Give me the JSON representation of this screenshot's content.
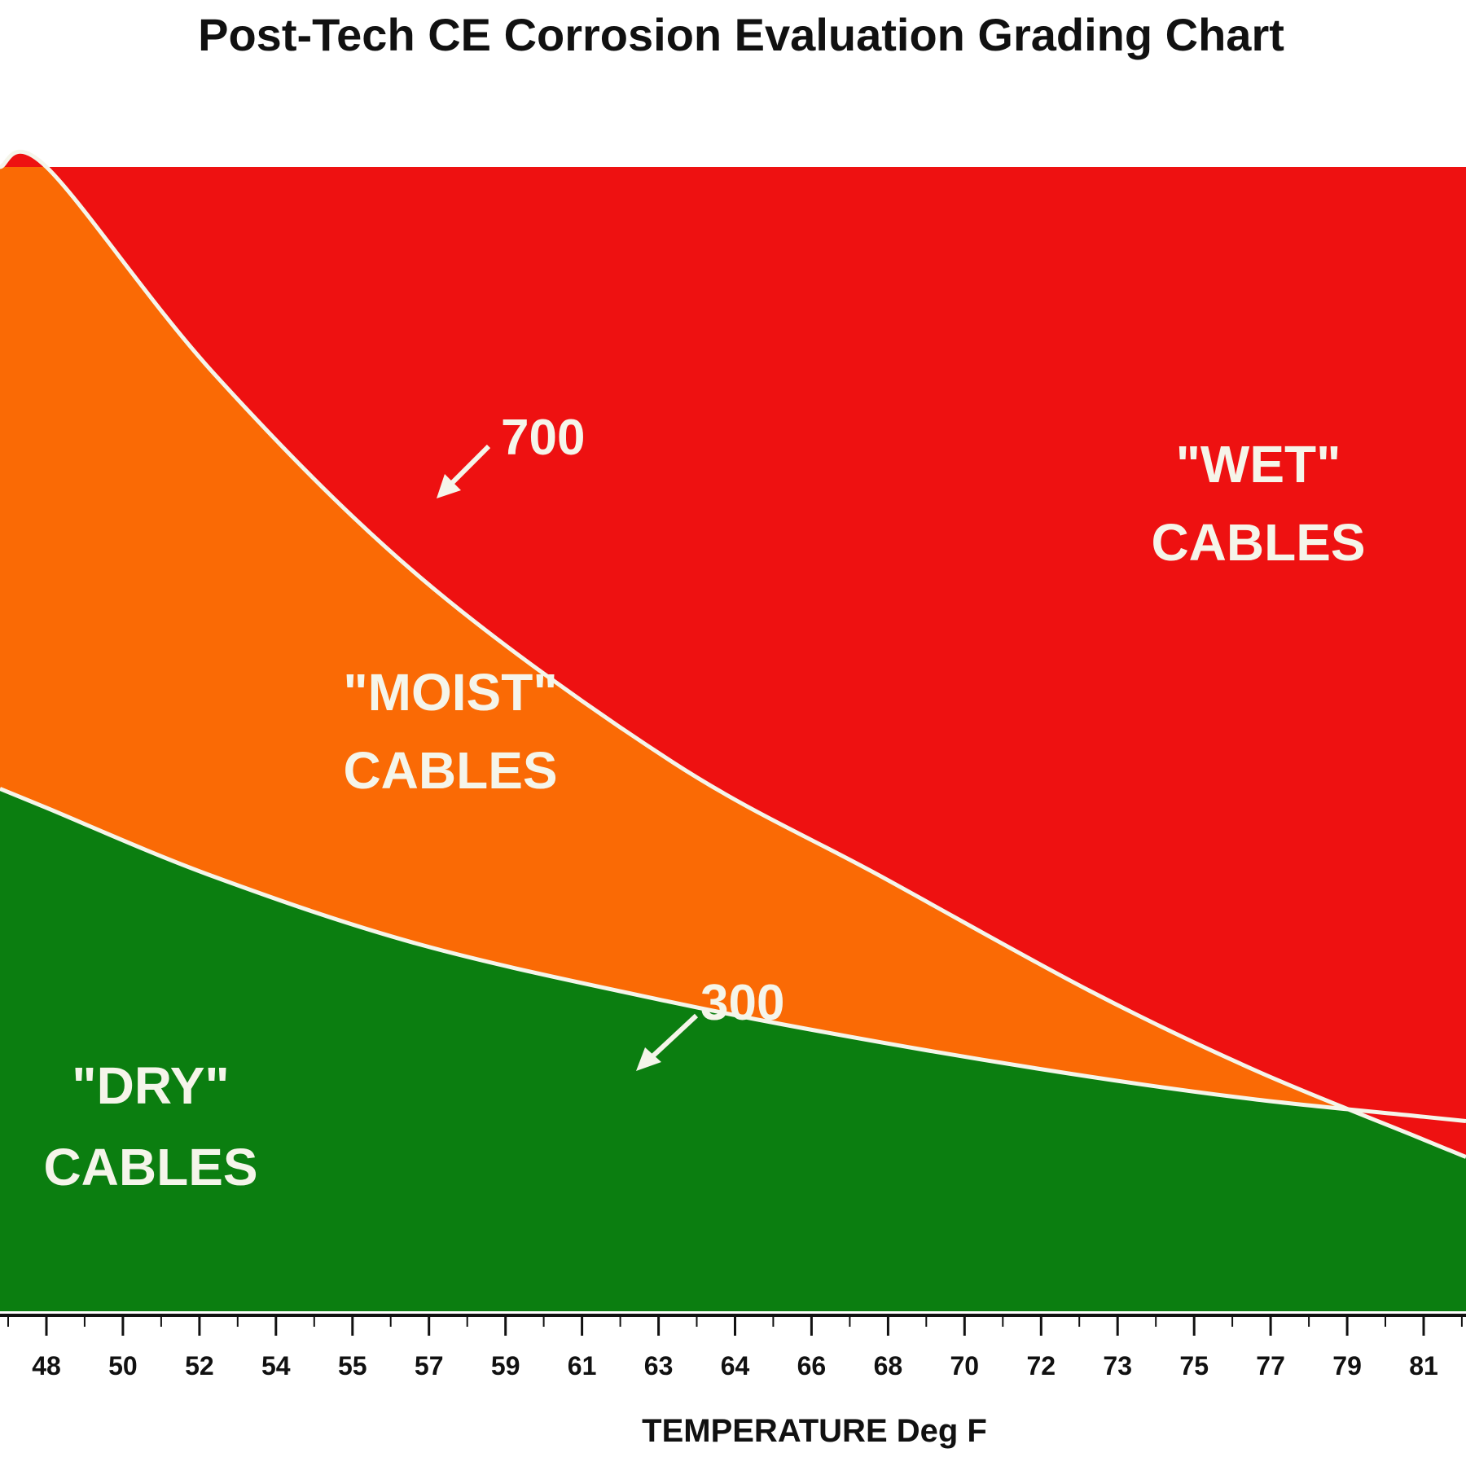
{
  "chart_data": {
    "type": "area",
    "title": "Post-Tech CE Corrosion Evaluation Grading Chart",
    "xlabel": "TEMPERATURE Deg F",
    "ylabel": "",
    "tick_labels": [
      "48",
      "50",
      "52",
      "54",
      "55",
      "57",
      "59",
      "61",
      "63",
      "64",
      "66",
      "68",
      "70",
      "72",
      "73",
      "75",
      "77",
      "79",
      "81"
    ],
    "series": [
      {
        "name": "700",
        "x": [
          48,
          52,
          57,
          63,
          68,
          73,
          77,
          81
        ],
        "y": [
          100,
          82,
          64,
          48,
          38,
          28,
          21,
          15
        ]
      },
      {
        "name": "300",
        "x": [
          48,
          52,
          57,
          63,
          68,
          73,
          77,
          81
        ],
        "y": [
          44,
          38,
          32,
          27,
          23.5,
          20.5,
          18.5,
          17
        ]
      }
    ],
    "ylim": [
      0,
      100
    ],
    "regions": [
      {
        "line1": "\"WET\"",
        "line2": "CABLES",
        "color": "#ee1111"
      },
      {
        "line1": "\"MOIST\"",
        "line2": "CABLES",
        "color": "#fa6a05"
      },
      {
        "line1": "\"DRY\"",
        "line2": "CABLES",
        "color": "#0b7e10"
      }
    ],
    "curve_color": "#f5f5ea",
    "grid": false,
    "legend": "none"
  }
}
